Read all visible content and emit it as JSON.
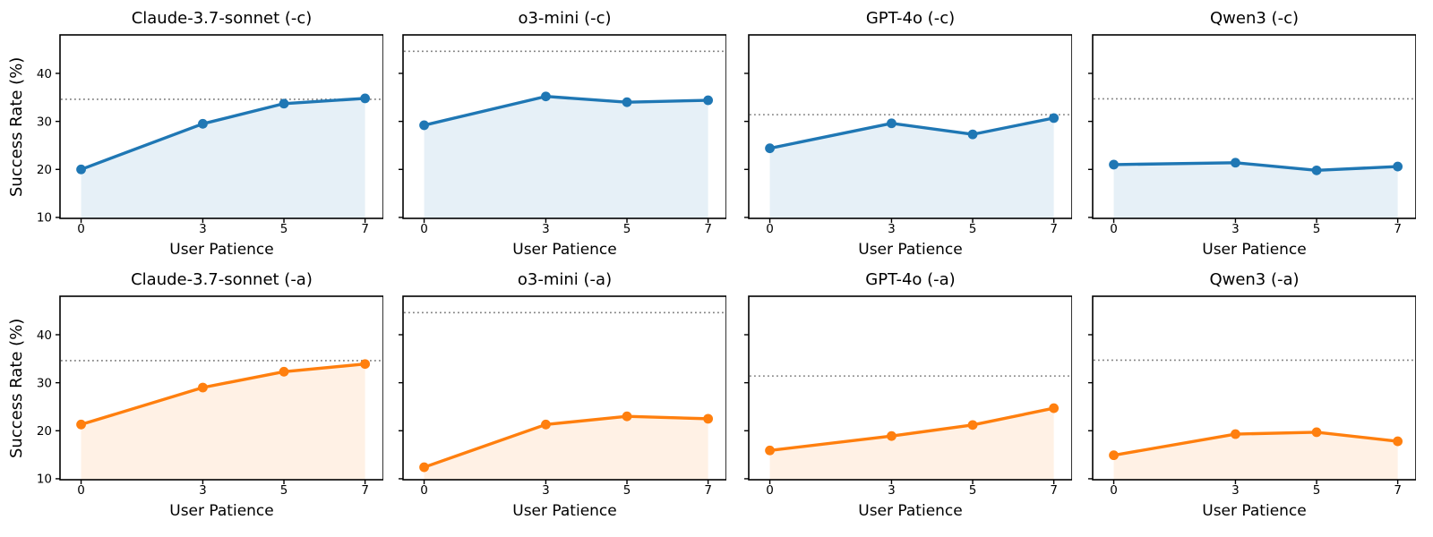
{
  "figure": {
    "xlabel": "User Patience",
    "ylabel": "Success Rate (%)",
    "x_ticks": [
      0,
      3,
      5,
      7
    ],
    "y_ticks": [
      10,
      20,
      30,
      40
    ],
    "xlim": [
      -0.52,
      7.45
    ],
    "ylim": [
      9.8,
      48.2
    ],
    "background": "#ffffff",
    "axis_color": "#000000",
    "baseline_color": "#7f7f7f",
    "baseline_style": "dotted",
    "fill_opacity": 0.11,
    "colors": {
      "context_variant": "#1f77b4",
      "ablation_variant": "#ff7f0e"
    }
  },
  "chart_data": [
    {
      "type": "area",
      "title": "Claude-3.7-sonnet (-c)",
      "color": "#1f77b4",
      "x": [
        0,
        3,
        5,
        7
      ],
      "y": [
        20.0,
        29.5,
        33.7,
        34.8
      ],
      "baseline": 34.6,
      "show_y_tick_labels": true
    },
    {
      "type": "area",
      "title": "o3-mini (-c)",
      "color": "#1f77b4",
      "x": [
        0,
        3,
        5,
        7
      ],
      "y": [
        29.2,
        35.2,
        34.0,
        34.4
      ],
      "baseline": 44.6,
      "show_y_tick_labels": false
    },
    {
      "type": "area",
      "title": "GPT-4o (-c)",
      "color": "#1f77b4",
      "x": [
        0,
        3,
        5,
        7
      ],
      "y": [
        24.4,
        29.6,
        27.3,
        30.7
      ],
      "baseline": 31.4,
      "show_y_tick_labels": false
    },
    {
      "type": "area",
      "title": "Qwen3 (-c)",
      "color": "#1f77b4",
      "x": [
        0,
        3,
        5,
        7
      ],
      "y": [
        21.0,
        21.4,
        19.8,
        20.6
      ],
      "baseline": 34.7,
      "show_y_tick_labels": false
    },
    {
      "type": "area",
      "title": "Claude-3.7-sonnet (-a)",
      "color": "#ff7f0e",
      "x": [
        0,
        3,
        5,
        7
      ],
      "y": [
        21.3,
        29.0,
        32.3,
        33.9
      ],
      "baseline": 34.6,
      "show_y_tick_labels": true
    },
    {
      "type": "area",
      "title": "o3-mini (-a)",
      "color": "#ff7f0e",
      "x": [
        0,
        3,
        5,
        7
      ],
      "y": [
        12.4,
        21.3,
        23.0,
        22.5
      ],
      "baseline": 44.6,
      "show_y_tick_labels": false
    },
    {
      "type": "area",
      "title": "GPT-4o (-a)",
      "color": "#ff7f0e",
      "x": [
        0,
        3,
        5,
        7
      ],
      "y": [
        15.9,
        18.9,
        21.2,
        24.7
      ],
      "baseline": 31.4,
      "show_y_tick_labels": false
    },
    {
      "type": "area",
      "title": "Qwen3 (-a)",
      "color": "#ff7f0e",
      "x": [
        0,
        3,
        5,
        7
      ],
      "y": [
        14.9,
        19.3,
        19.7,
        17.8
      ],
      "baseline": 34.7,
      "show_y_tick_labels": false
    }
  ]
}
